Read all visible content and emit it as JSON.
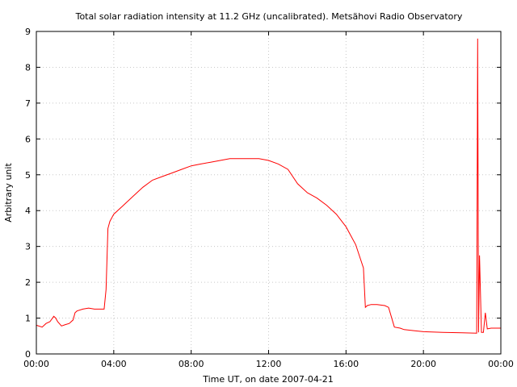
{
  "chart_data": {
    "type": "line",
    "title": "Total solar radiation intensity at 11.2 GHz (uncalibrated). Metsähovi Radio Observatory",
    "xlabel": "Time UT, on date 2007-04-21",
    "ylabel": "Arbitrary unit",
    "xlim": [
      0,
      24
    ],
    "ylim": [
      0,
      9
    ],
    "x_tick_labels": [
      "00:00",
      "04:00",
      "08:00",
      "12:00",
      "16:00",
      "20:00",
      "00:00"
    ],
    "y_tick_labels": [
      "0",
      "1",
      "2",
      "3",
      "4",
      "5",
      "6",
      "7",
      "8",
      "9"
    ],
    "grid": true,
    "line_color": "#ff0000",
    "x_hours": [
      0.0,
      0.3,
      0.5,
      0.7,
      0.9,
      1.0,
      1.1,
      1.3,
      1.5,
      1.7,
      1.9,
      2.0,
      2.1,
      2.4,
      2.7,
      3.0,
      3.3,
      3.5,
      3.6,
      3.7,
      3.8,
      4.0,
      4.5,
      5.0,
      5.5,
      6.0,
      6.5,
      7.0,
      7.5,
      8.0,
      8.5,
      9.0,
      9.5,
      10.0,
      10.5,
      11.0,
      11.5,
      12.0,
      12.5,
      13.0,
      13.5,
      14.0,
      14.5,
      15.0,
      15.5,
      16.0,
      16.5,
      16.9,
      17.0,
      17.1,
      17.3,
      17.6,
      18.0,
      18.2,
      18.5,
      18.8,
      19.0,
      19.5,
      20.0,
      21.0,
      22.0,
      22.75,
      22.8,
      22.85,
      22.9,
      23.0,
      23.1,
      23.2,
      23.3,
      23.5,
      24.0
    ],
    "values": [
      0.8,
      0.75,
      0.85,
      0.9,
      1.05,
      1.0,
      0.9,
      0.78,
      0.82,
      0.85,
      0.95,
      1.15,
      1.2,
      1.25,
      1.28,
      1.25,
      1.25,
      1.25,
      1.8,
      3.5,
      3.7,
      3.9,
      4.15,
      4.4,
      4.65,
      4.85,
      4.95,
      5.05,
      5.15,
      5.25,
      5.3,
      5.35,
      5.4,
      5.45,
      5.45,
      5.45,
      5.45,
      5.4,
      5.3,
      5.15,
      4.75,
      4.5,
      4.35,
      4.15,
      3.9,
      3.55,
      3.05,
      2.4,
      1.3,
      1.35,
      1.38,
      1.38,
      1.35,
      1.3,
      0.75,
      0.72,
      0.68,
      0.65,
      0.62,
      0.6,
      0.59,
      0.58,
      8.8,
      0.6,
      2.75,
      0.6,
      0.6,
      1.15,
      0.7,
      0.72,
      0.72
    ]
  }
}
